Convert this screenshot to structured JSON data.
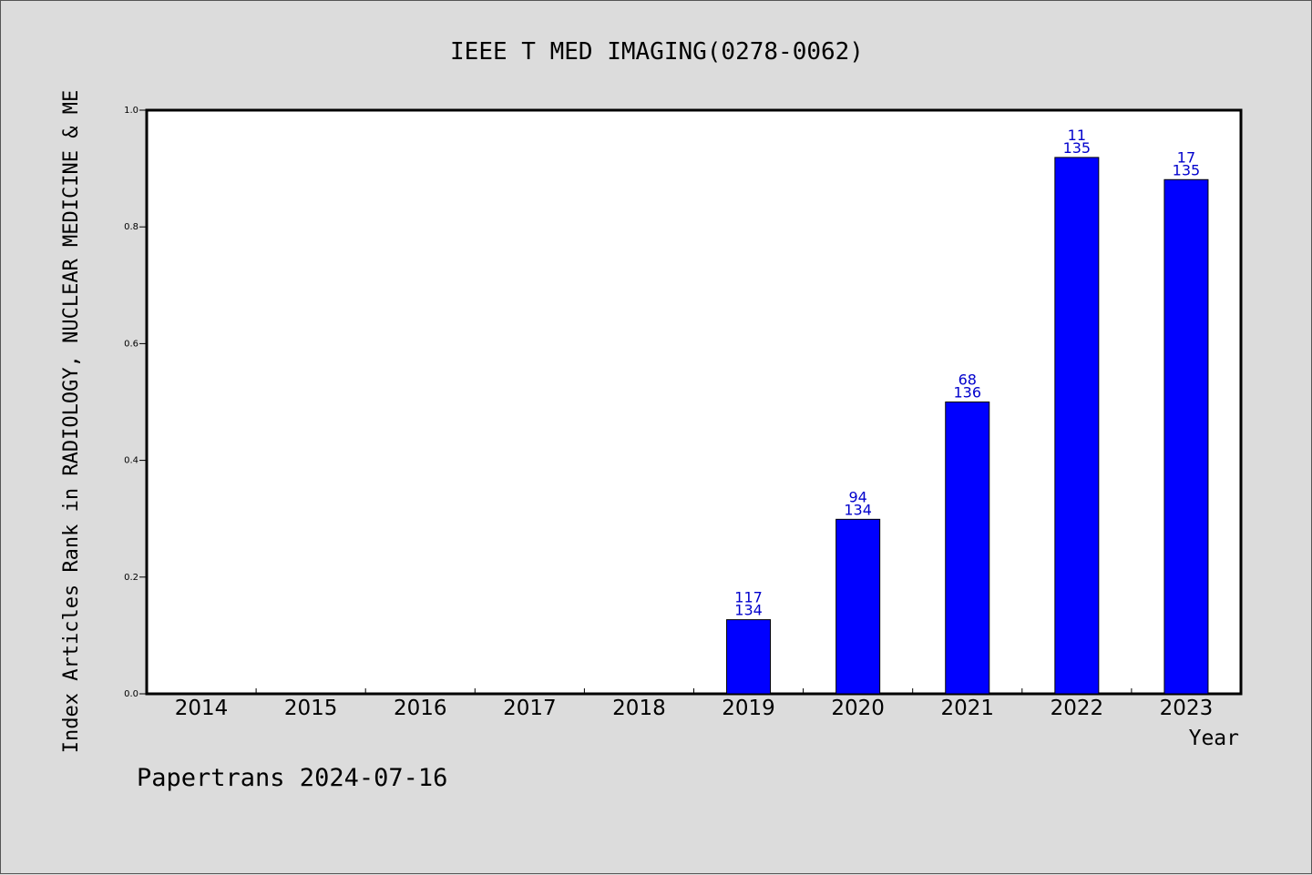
{
  "footer": {
    "text": "Papertrans 2024-07-16"
  },
  "colors": {
    "bar": "#0000ff",
    "bar_label": "#0000cc",
    "background": "#dcdcdc",
    "plot_bg": "#ffffff"
  },
  "chart_data": {
    "type": "bar",
    "title": "IEEE T MED IMAGING(0278-0062)",
    "xlabel": "Year",
    "ylabel": "Index Articles Rank in RADIOLOGY, NUCLEAR MEDICINE & ME",
    "categories": [
      "2014",
      "2015",
      "2016",
      "2017",
      "2018",
      "2019",
      "2020",
      "2021",
      "2022",
      "2023"
    ],
    "values": [
      null,
      null,
      null,
      null,
      null,
      0.127,
      0.299,
      0.5,
      0.919,
      0.881
    ],
    "rank_labels": [
      null,
      null,
      null,
      null,
      null,
      {
        "rank": "117",
        "total": "134"
      },
      {
        "rank": "94",
        "total": "134"
      },
      {
        "rank": "68",
        "total": "136"
      },
      {
        "rank": "11",
        "total": "135"
      },
      {
        "rank": "17",
        "total": "135"
      }
    ],
    "ylim": [
      0,
      1.0
    ],
    "yticks": [
      "0.0",
      "0.2",
      "0.4",
      "0.6",
      "0.8",
      "1.0"
    ],
    "grid": false,
    "legend": "none"
  }
}
